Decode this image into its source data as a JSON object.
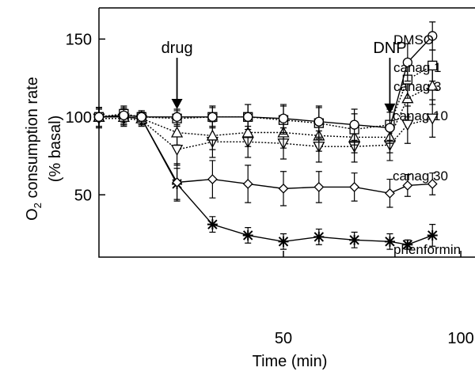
{
  "chart_data": {
    "type": "line",
    "xlabel": "Time (min)",
    "ylabel_line1": "O",
    "ylabel_sub": "2",
    "ylabel_rest": " consumption rate",
    "ylabel_line2": "(% basal)",
    "xlim": [
      -2,
      104
    ],
    "ylim": [
      10,
      170
    ],
    "x_ticks": [
      50,
      100
    ],
    "y_ticks": [
      50,
      100,
      150
    ],
    "x": [
      -2,
      5,
      10,
      20,
      30,
      40,
      50,
      60,
      70,
      80,
      85,
      92
    ],
    "series": [
      {
        "name": "DMSO",
        "marker": "circle",
        "values": [
          100,
          101,
          100,
          100,
          100,
          100,
          99,
          97,
          95,
          93,
          135,
          152
        ],
        "errors": [
          6,
          5,
          4,
          5,
          6,
          8,
          9,
          10,
          10,
          10,
          12,
          9
        ]
      },
      {
        "name": "canag 1",
        "marker": "square",
        "values": [
          100,
          102,
          100,
          99,
          100,
          100,
          98,
          96,
          92,
          95,
          124,
          133
        ],
        "errors": [
          6,
          5,
          4,
          5,
          7,
          8,
          9,
          10,
          10,
          10,
          12,
          10
        ]
      },
      {
        "name": "canag 3",
        "marker": "triangle",
        "values": [
          100,
          100,
          99,
          90,
          88,
          90,
          90,
          88,
          87,
          87,
          112,
          120
        ],
        "errors": [
          6,
          5,
          4,
          8,
          9,
          9,
          10,
          10,
          10,
          10,
          12,
          12
        ]
      },
      {
        "name": "canag 10",
        "marker": "triangle-down",
        "values": [
          99,
          99,
          98,
          79,
          84,
          84,
          83,
          81,
          81,
          82,
          95,
          99
        ],
        "errors": [
          6,
          5,
          4,
          10,
          10,
          10,
          10,
          10,
          10,
          10,
          12,
          12
        ]
      },
      {
        "name": "canag 30",
        "marker": "diamond",
        "values": [
          100,
          100,
          99,
          58,
          60,
          57,
          54,
          55,
          55,
          51,
          56,
          57
        ],
        "errors": [
          6,
          5,
          4,
          12,
          12,
          12,
          11,
          10,
          9,
          9,
          7,
          7
        ]
      },
      {
        "name": "phenformin",
        "marker": "star",
        "values": [
          100,
          100,
          99,
          57,
          31,
          24,
          20,
          23,
          21,
          20,
          18,
          24
        ],
        "errors": [
          6,
          5,
          4,
          10,
          5,
          5,
          5,
          5,
          5,
          5,
          3,
          7
        ]
      }
    ],
    "annotations": [
      {
        "text": "drug",
        "x": 20,
        "arrow_from_y": 138,
        "arrow_to_y": 105
      },
      {
        "text": "DNP",
        "x": 80,
        "arrow_from_y": 138,
        "arrow_to_y": 102
      }
    ],
    "grid": false,
    "legend": "inline-right"
  }
}
